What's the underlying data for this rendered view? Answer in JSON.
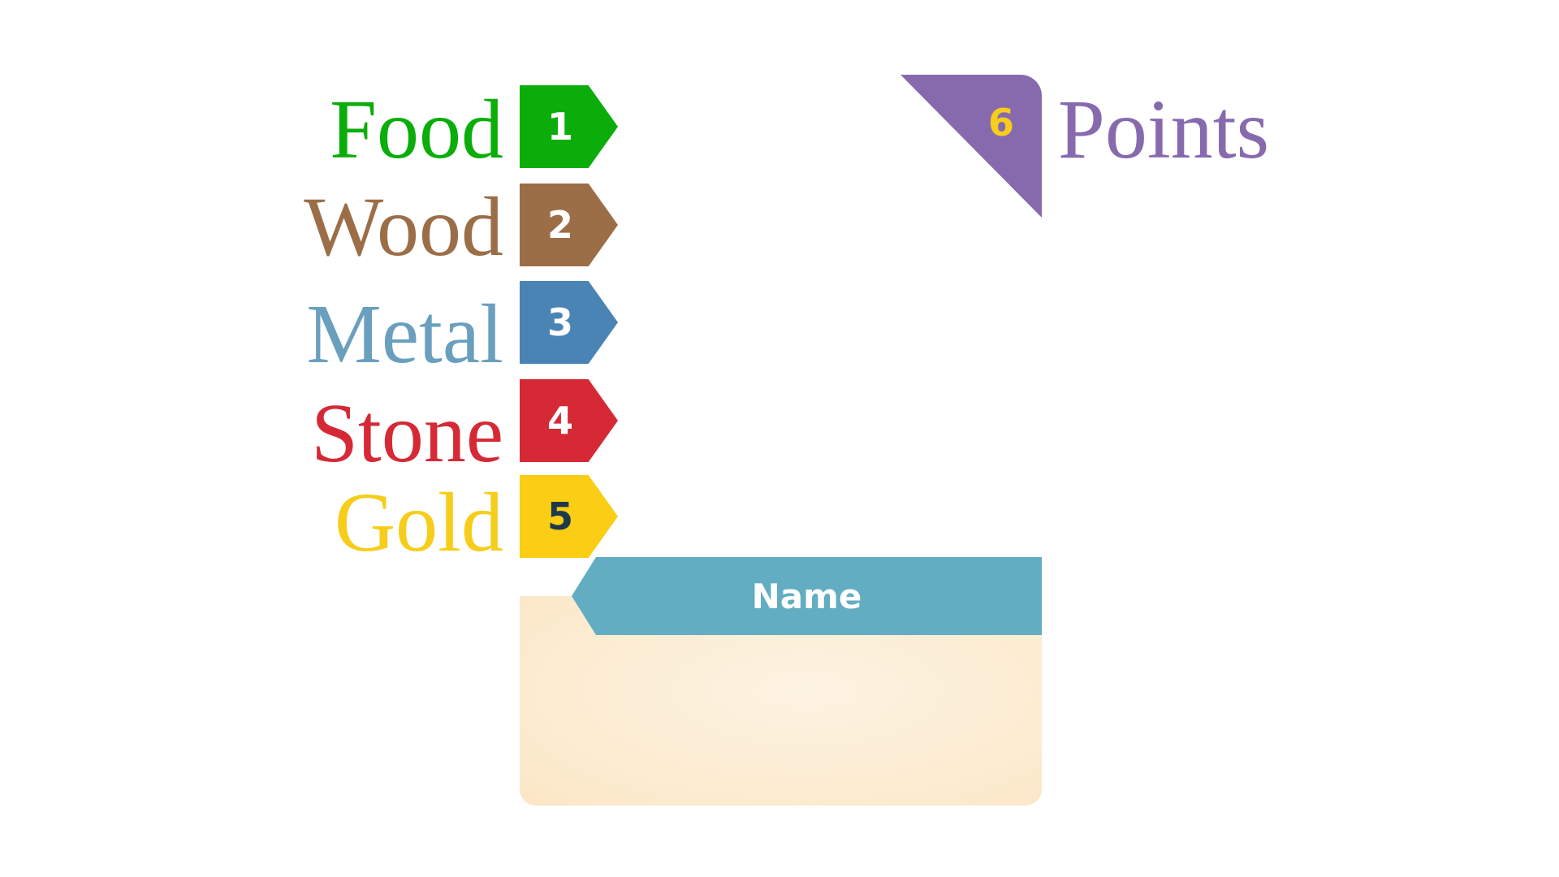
{
  "resources": [
    {
      "name": "Food",
      "number": "1",
      "color": "#0aad0a",
      "tag_color": "#0aad0a",
      "number_color": "#ffffff"
    },
    {
      "name": "Wood",
      "number": "2",
      "color": "#9b6e47",
      "tag_color": "#9b6e47",
      "number_color": "#ffffff"
    },
    {
      "name": "Metal",
      "number": "3",
      "color": "#6a9fbe",
      "tag_color": "#4a84b5",
      "number_color": "#ffffff"
    },
    {
      "name": "Stone",
      "number": "4",
      "color": "#d52a36",
      "tag_color": "#d52a36",
      "number_color": "#ffffff"
    },
    {
      "name": "Gold",
      "number": "5",
      "color": "#f6cd1a",
      "tag_color": "#fbcd15",
      "number_color": "#1d3a4a"
    }
  ],
  "points": {
    "number": "6",
    "label": "Points",
    "color": "#876aae",
    "number_color": "#f6cd1a"
  },
  "name_banner": {
    "label": "Name",
    "color": "#62adc1",
    "text_color": "#ffffff"
  }
}
